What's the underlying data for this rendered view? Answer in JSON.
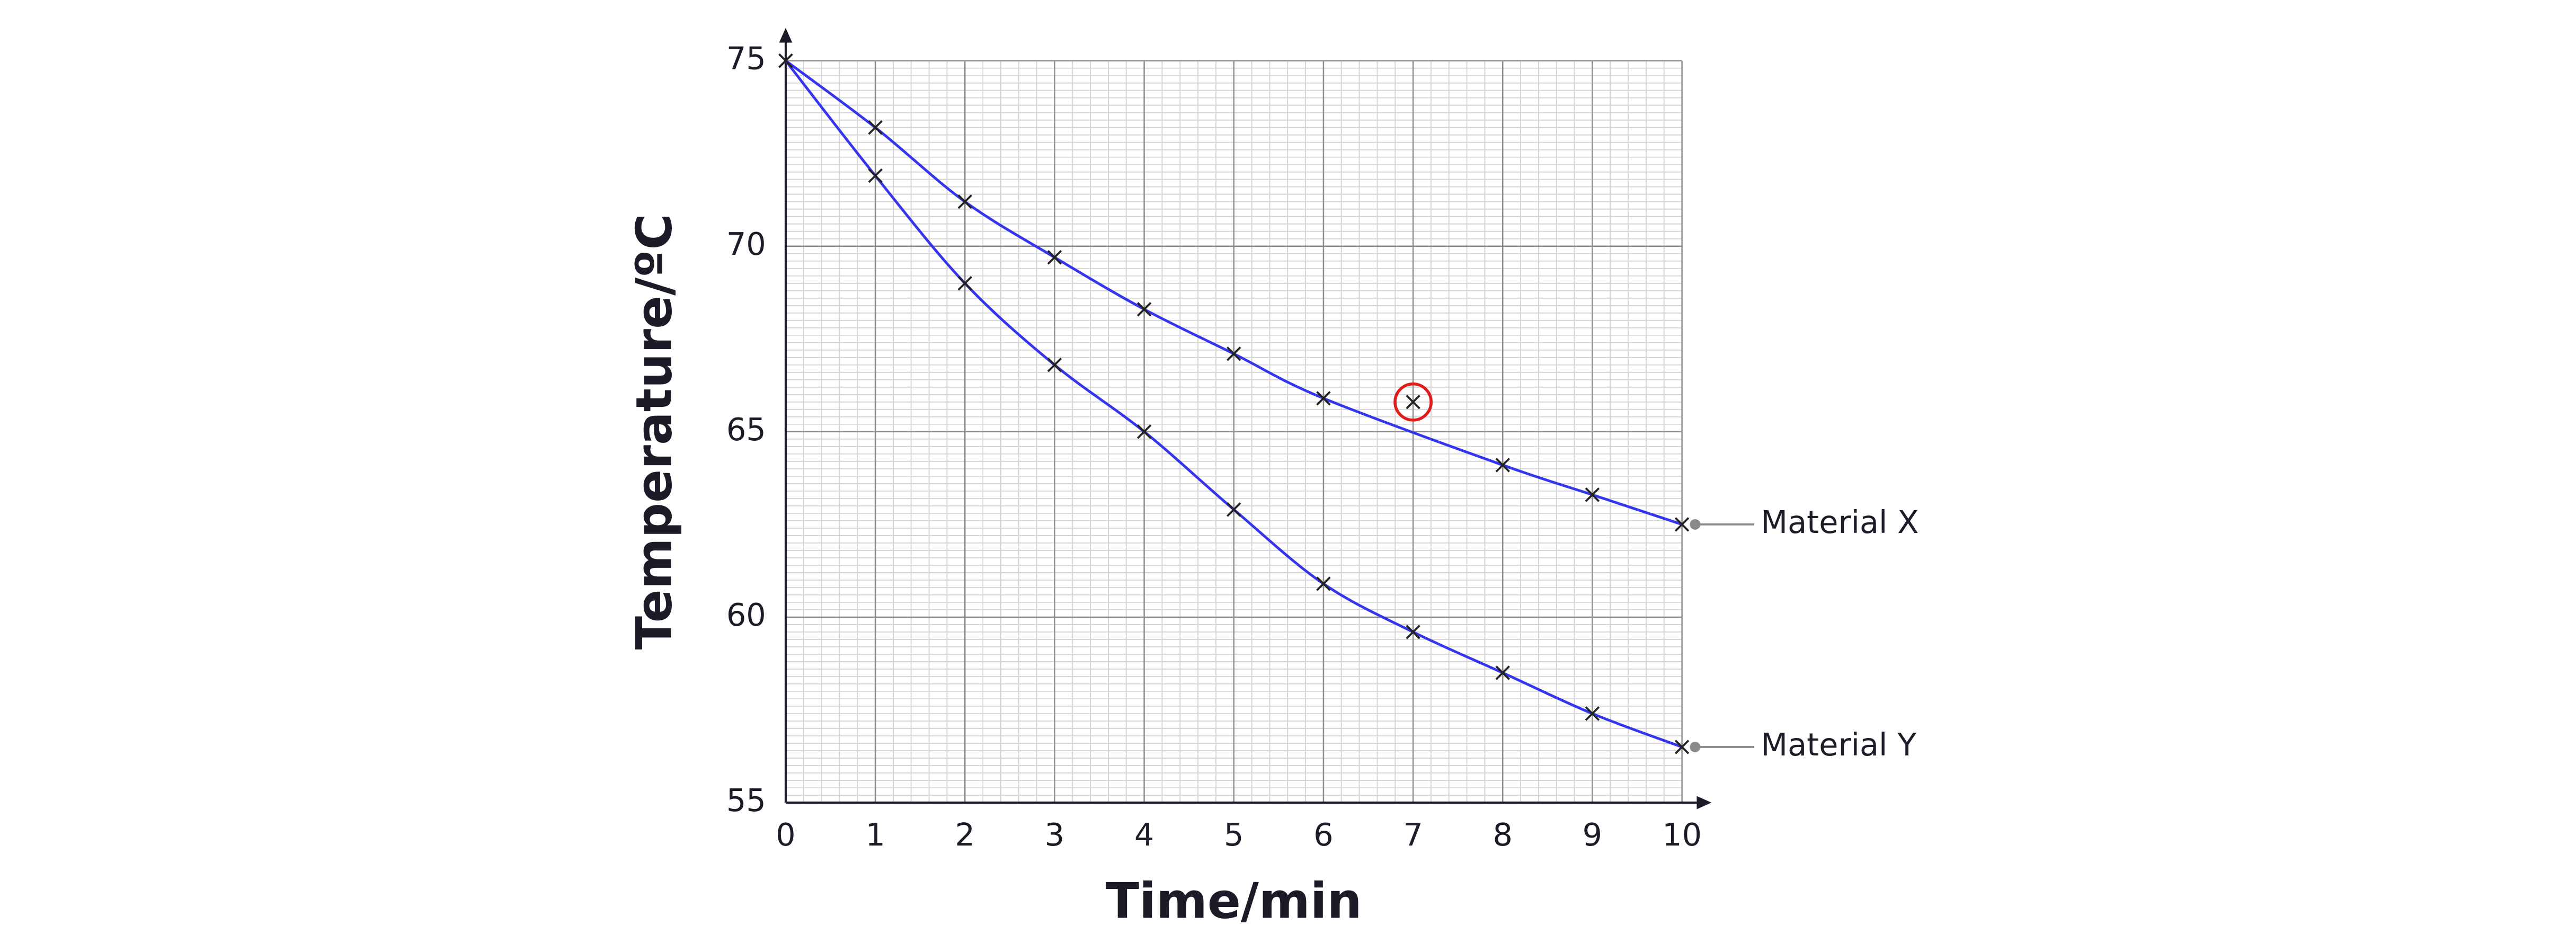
{
  "chart_data": {
    "type": "line",
    "x_label": "Time/min",
    "y_label": "Temperature/ºC",
    "x": [
      0,
      1,
      2,
      3,
      4,
      5,
      6,
      7,
      8,
      9,
      10
    ],
    "series": [
      {
        "name": "Material X",
        "color": "#3535ee",
        "values": [
          75,
          73.2,
          71.2,
          69.7,
          68.3,
          67.1,
          65.9,
          65.8,
          64.1,
          63.3,
          62.5
        ]
      },
      {
        "name": "Material Y",
        "color": "#3535ee",
        "values": [
          75,
          71.9,
          69.0,
          66.8,
          65.0,
          62.9,
          60.9,
          59.6,
          58.5,
          57.4,
          56.5
        ]
      }
    ],
    "marker_color": "#222222",
    "highlight": {
      "series": 0,
      "index": 7,
      "color": "#e01b1b"
    },
    "xlim": [
      0,
      10
    ],
    "xticks": [
      0,
      1,
      2,
      3,
      4,
      5,
      6,
      7,
      8,
      9,
      10
    ],
    "ylim": [
      55,
      75
    ],
    "yticks": [
      55,
      60,
      65,
      70,
      75
    ],
    "grid": true,
    "minor_divisions": {
      "x": 5,
      "y": 25
    }
  }
}
